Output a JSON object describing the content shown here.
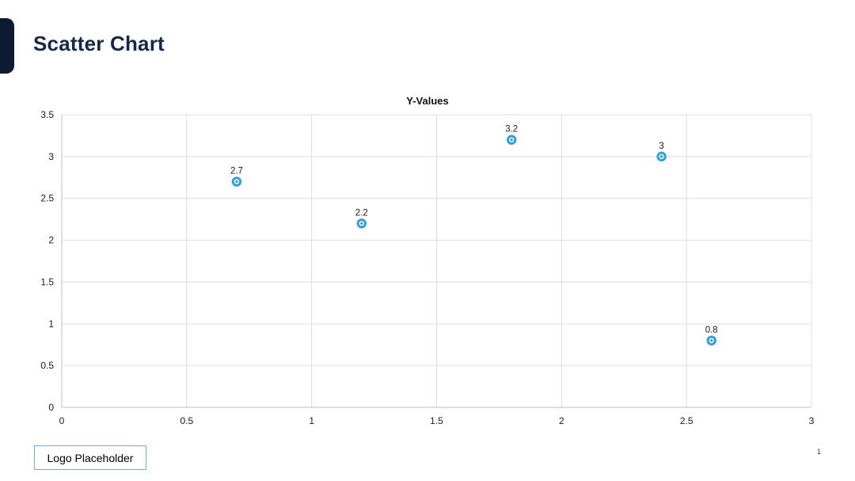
{
  "header": {
    "title": "Scatter Chart"
  },
  "chart_data": {
    "type": "scatter",
    "title": "Y-Values",
    "points": [
      {
        "x": 0.7,
        "y": 2.7,
        "label": "2.7"
      },
      {
        "x": 1.2,
        "y": 2.2,
        "label": "2.2"
      },
      {
        "x": 1.8,
        "y": 3.2,
        "label": "3.2"
      },
      {
        "x": 2.4,
        "y": 3.0,
        "label": "3"
      },
      {
        "x": 2.6,
        "y": 0.8,
        "label": "0.8"
      }
    ],
    "xlim": [
      0,
      3
    ],
    "ylim": [
      0,
      3.5
    ],
    "xticks": [
      0,
      0.5,
      1,
      1.5,
      2,
      2.5,
      3
    ],
    "yticks": [
      0,
      0.5,
      1,
      1.5,
      2,
      2.5,
      3,
      3.5
    ],
    "xtick_labels": [
      "0",
      "0.5",
      "1",
      "1.5",
      "2",
      "2.5",
      "3"
    ],
    "ytick_labels": [
      "0",
      "0.5",
      "1",
      "1.5",
      "2",
      "2.5",
      "3",
      "3.5"
    ],
    "grid": true,
    "legend_position": "none",
    "xlabel": "",
    "ylabel": ""
  },
  "footer": {
    "logo_label": "Logo Placeholder",
    "page_number": "1"
  },
  "colors": {
    "accent_tab": "#0d1b30",
    "title_text": "#132947",
    "marker": "#2e9fda",
    "gridline": "#dddddd",
    "axis_line": "#bebebe",
    "tick_text": "#1a1a1a",
    "chart_title_text": "#111111",
    "logo_border": "#61b1e0"
  }
}
